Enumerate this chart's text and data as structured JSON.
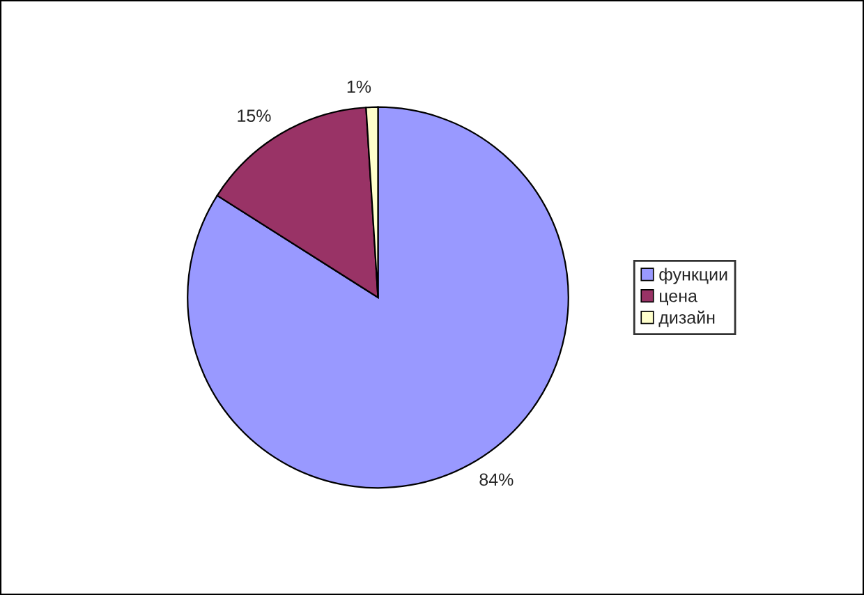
{
  "chart_data": {
    "type": "pie",
    "categories": [
      "функции",
      "цена",
      "дизайн"
    ],
    "values": [
      84,
      15,
      1
    ],
    "colors": [
      "#9999ff",
      "#993366",
      "#ffffcc"
    ],
    "value_labels": [
      "84%",
      "15%",
      "1%"
    ],
    "legend": "right"
  }
}
